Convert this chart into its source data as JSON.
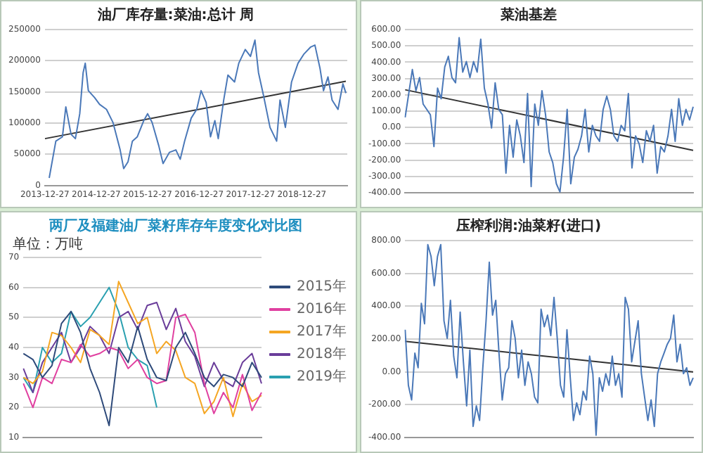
{
  "chart_data": [
    {
      "type": "line",
      "title": "油厂库存量:菜油:总计 周",
      "grid": "y",
      "marker": "none",
      "legend": false,
      "x": [
        "2014-01-27",
        "2014-03-15",
        "2014-05-01",
        "2014-05-25",
        "2014-07-01",
        "2014-08-01",
        "2014-09-01",
        "2014-09-25",
        "2014-10-10",
        "2014-11-01",
        "2014-12-15",
        "2015-01-20",
        "2015-03-10",
        "2015-04-25",
        "2015-06-15",
        "2015-07-10",
        "2015-08-10",
        "2015-09-10",
        "2015-10-15",
        "2015-11-30",
        "2015-12-27",
        "2016-01-28",
        "2016-03-15",
        "2016-04-15",
        "2016-05-30",
        "2016-07-15",
        "2016-08-15",
        "2016-09-15",
        "2016-11-01",
        "2016-12-10",
        "2017-01-10",
        "2017-02-15",
        "2017-03-18",
        "2017-04-18",
        "2017-05-12",
        "2017-06-20",
        "2017-07-20",
        "2017-09-05",
        "2017-10-05",
        "2017-11-20",
        "2017-12-27",
        "2018-01-28",
        "2018-02-22",
        "2018-03-30",
        "2018-05-15",
        "2018-07-01",
        "2018-07-25",
        "2018-09-01",
        "2018-10-15",
        "2018-11-30",
        "2019-01-12",
        "2019-02-28",
        "2019-03-30",
        "2019-05-05",
        "2019-05-30",
        "2019-07-01",
        "2019-07-30",
        "2019-09-10",
        "2019-10-15",
        "2019-11-05"
      ],
      "xlim": [
        "2013-12-27",
        "2019-11-15"
      ],
      "xticks": [
        "2013-12-27",
        "2014-12-27",
        "2015-12-27",
        "2016-12-27",
        "2017-12-27",
        "2018-12-27"
      ],
      "ylim": [
        0,
        250000
      ],
      "yticks": [
        0,
        50000,
        100000,
        150000,
        200000,
        250000
      ],
      "series": [
        {
          "color": "#4a78b8",
          "values": [
            12000,
            71000,
            78000,
            126000,
            82000,
            75000,
            115000,
            181000,
            196000,
            152000,
            141000,
            130000,
            122000,
            101000,
            57000,
            27000,
            38000,
            71000,
            78000,
            104000,
            115000,
            101000,
            64000,
            35000,
            53000,
            57000,
            42000,
            71000,
            108000,
            122000,
            152000,
            133000,
            78000,
            104000,
            75000,
            137000,
            177000,
            166000,
            196000,
            218000,
            207000,
            233000,
            181000,
            144000,
            93000,
            71000,
            137000,
            93000,
            166000,
            196000,
            211000,
            222000,
            225000,
            188000,
            152000,
            174000,
            137000,
            122000,
            163000,
            148000
          ]
        },
        {
          "type": "line",
          "color": "#333333",
          "x": [
            "2013-12-27",
            "2019-11-05"
          ],
          "values": [
            75000,
            167000
          ]
        }
      ]
    },
    {
      "type": "line",
      "title": "菜油基差",
      "grid": "y",
      "marker": "none",
      "legend": false,
      "tick_labels": "y",
      "categories": [
        null,
        null,
        null,
        null,
        null,
        null,
        null,
        null,
        null,
        null,
        null,
        null,
        null,
        null,
        null,
        null,
        null,
        null,
        null,
        null,
        null,
        null,
        null,
        null,
        null,
        null,
        null,
        null,
        null,
        null,
        null,
        null,
        null,
        null,
        null,
        null,
        null,
        null,
        null,
        null,
        null,
        null,
        null,
        null,
        null,
        null,
        null,
        null,
        null,
        null,
        null,
        null,
        null,
        null,
        null,
        null,
        null,
        null,
        null,
        null,
        null,
        null,
        null,
        null,
        null,
        null,
        null,
        null,
        null,
        null,
        null,
        null,
        null,
        null,
        null,
        null,
        null,
        null,
        null,
        null,
        null
      ],
      "ylim": [
        -400,
        600
      ],
      "yticks": [
        {
          "value": -400,
          "label": "-400.00"
        },
        {
          "value": -300,
          "label": "-300.00"
        },
        {
          "value": -200,
          "label": "-200.00"
        },
        {
          "value": -100,
          "label": "-100.00"
        },
        {
          "value": 0,
          "label": "0.00"
        },
        {
          "value": 100,
          "label": "100.00"
        },
        {
          "value": 200,
          "label": "200.00"
        },
        {
          "value": 300,
          "label": "300.00"
        },
        {
          "value": 400,
          "label": "400.00"
        },
        {
          "value": 500,
          "label": "500.00"
        },
        {
          "value": 600,
          "label": "600.00"
        }
      ],
      "series": [
        {
          "color": "#4a78b8",
          "values": [
            62,
            208,
            355,
            225,
            306,
            143,
            111,
            78,
            -117,
            241,
            176,
            371,
            436,
            306,
            274,
            550,
            339,
            404,
            306,
            404,
            339,
            541,
            241,
            143,
            -3,
            274,
            111,
            78,
            -280,
            13,
            -182,
            46,
            -52,
            -215,
            208,
            -362,
            143,
            13,
            225,
            78,
            -150,
            -215,
            -345,
            -395,
            -182,
            111,
            -345,
            -182,
            -134,
            -52,
            111,
            -150,
            13,
            -52,
            -85,
            111,
            192,
            111,
            -52,
            -85,
            13,
            -20,
            208,
            -248,
            -52,
            -101,
            -215,
            -20,
            -85,
            13,
            -280,
            -117,
            -150,
            -52,
            111,
            -85,
            176,
            13,
            111,
            46,
            127
          ]
        },
        {
          "type": "line",
          "color": "#333333",
          "values": [
            231,
            null,
            null,
            null,
            null,
            null,
            null,
            null,
            null,
            null,
            null,
            null,
            null,
            null,
            null,
            null,
            null,
            null,
            null,
            null,
            null,
            null,
            null,
            null,
            null,
            null,
            null,
            null,
            null,
            null,
            null,
            null,
            null,
            null,
            null,
            null,
            null,
            null,
            null,
            null,
            null,
            null,
            null,
            null,
            null,
            null,
            null,
            null,
            null,
            null,
            null,
            null,
            null,
            null,
            null,
            null,
            null,
            null,
            null,
            null,
            null,
            null,
            null,
            null,
            null,
            null,
            null,
            null,
            null,
            null,
            null,
            null,
            null,
            null,
            null,
            null,
            null,
            null,
            null,
            null,
            -140
          ]
        }
      ]
    },
    {
      "type": "line",
      "title": "两厂及福建油厂菜籽库存年度变化对比图",
      "ylabel": "单位：万吨",
      "grid": "y",
      "marker": "none",
      "legend": "right",
      "tick_labels": "y",
      "categories": [
        null,
        null,
        null,
        null,
        null,
        null,
        null,
        null,
        null,
        null,
        null,
        null,
        null,
        null,
        null,
        null,
        null,
        null,
        null,
        null,
        null,
        null,
        null,
        null,
        null,
        null
      ],
      "ylim": [
        10,
        70
      ],
      "yticks": [
        10,
        20,
        30,
        40,
        50,
        60,
        70
      ],
      "series": [
        {
          "name": "2015年",
          "color": "#2e4a7a",
          "values": [
            38,
            36,
            30,
            34,
            48,
            52,
            45,
            33,
            25,
            14,
            40,
            35,
            47,
            36,
            30,
            29,
            40,
            45,
            38,
            30,
            27,
            31,
            30,
            27,
            35,
            30
          ]
        },
        {
          "name": "2016年",
          "color": "#e040a0",
          "values": [
            28,
            20,
            30,
            28,
            36,
            35,
            41,
            37,
            38,
            40,
            39,
            33,
            36,
            30,
            28,
            29,
            50,
            51,
            45,
            28,
            18,
            25,
            20,
            31,
            19,
            25
          ]
        },
        {
          "name": "2017年",
          "color": "#f5a623",
          "values": [
            30,
            28,
            32,
            45,
            44,
            40,
            35,
            46,
            44,
            41,
            62,
            55,
            48,
            50,
            38,
            42,
            39,
            30,
            28,
            18,
            22,
            30,
            17,
            28,
            22,
            24
          ]
        },
        {
          "name": "2018年",
          "color": "#6a3d9a",
          "values": [
            33,
            25,
            35,
            40,
            45,
            35,
            40,
            47,
            44,
            38,
            50,
            52,
            46,
            54,
            55,
            46,
            53,
            42,
            37,
            27,
            35,
            29,
            27,
            35,
            38,
            28
          ]
        },
        {
          "name": "2019年",
          "color": "#2aa0b0",
          "values": [
            30,
            25,
            40,
            35,
            38,
            52,
            47,
            50,
            55,
            60,
            52,
            40,
            36,
            34,
            20,
            null,
            null,
            null,
            null,
            null,
            null,
            null,
            null,
            null,
            null,
            null
          ]
        }
      ]
    },
    {
      "type": "line",
      "title": "压榨利润:油菜籽(进口)",
      "grid": "y",
      "marker": "none",
      "legend": false,
      "tick_labels": "y",
      "categories": [
        null,
        null,
        null,
        null,
        null,
        null,
        null,
        null,
        null,
        null,
        null,
        null,
        null,
        null,
        null,
        null,
        null,
        null,
        null,
        null,
        null,
        null,
        null,
        null,
        null,
        null,
        null,
        null,
        null,
        null,
        null,
        null,
        null,
        null,
        null,
        null,
        null,
        null,
        null,
        null,
        null,
        null,
        null,
        null,
        null,
        null,
        null,
        null,
        null,
        null,
        null,
        null,
        null,
        null,
        null,
        null,
        null,
        null,
        null,
        null,
        null,
        null,
        null,
        null,
        null,
        null,
        null,
        null,
        null,
        null,
        null,
        null,
        null,
        null,
        null,
        null,
        null,
        null,
        null,
        null,
        null,
        null,
        null,
        null,
        null,
        null,
        null,
        null,
        null,
        null
      ],
      "ylim": [
        -400,
        800
      ],
      "yticks": [
        {
          "value": -400,
          "label": "-400.00"
        },
        {
          "value": -200,
          "label": "-200.00"
        },
        {
          "value": 0,
          "label": "0.00"
        },
        {
          "value": 200,
          "label": "200.00"
        },
        {
          "value": 400,
          "label": "400.00"
        },
        {
          "value": 600,
          "label": "600.00"
        },
        {
          "value": 800,
          "label": "800.00"
        }
      ],
      "series": [
        {
          "color": "#4a78b8",
          "values": [
            257,
            -82,
            -171,
            114,
            25,
            418,
            293,
            775,
            704,
            525,
            704,
            775,
            311,
            204,
            436,
            96,
            -36,
            364,
            61,
            -207,
            132,
            -332,
            -207,
            -296,
            25,
            311,
            668,
            346,
            436,
            114,
            -171,
            -11,
            25,
            311,
            204,
            -36,
            132,
            -82,
            61,
            -11,
            -154,
            -189,
            382,
            275,
            346,
            221,
            454,
            204,
            -82,
            -154,
            257,
            -29,
            -296,
            -189,
            -261,
            -118,
            -171,
            96,
            -11,
            -386,
            -36,
            -118,
            -11,
            -82,
            96,
            -82,
            -11,
            -154,
            454,
            382,
            61,
            186,
            311,
            -11,
            -154,
            -296,
            -171,
            -332,
            -11,
            61,
            114,
            168,
            204,
            346,
            61,
            168,
            -11,
            25,
            -82,
            -36
          ]
        },
        {
          "type": "line",
          "color": "#333333",
          "values": [
            186,
            null,
            null,
            null,
            null,
            null,
            null,
            null,
            null,
            null,
            null,
            null,
            null,
            null,
            null,
            null,
            null,
            null,
            null,
            null,
            null,
            null,
            null,
            null,
            null,
            null,
            null,
            null,
            null,
            null,
            null,
            null,
            null,
            null,
            null,
            null,
            null,
            null,
            null,
            null,
            null,
            null,
            null,
            null,
            null,
            null,
            null,
            null,
            null,
            null,
            null,
            null,
            null,
            null,
            null,
            null,
            null,
            null,
            null,
            null,
            null,
            null,
            null,
            null,
            null,
            null,
            null,
            null,
            null,
            null,
            null,
            null,
            null,
            null,
            null,
            null,
            null,
            null,
            null,
            null,
            null,
            null,
            null,
            null,
            null,
            null,
            null,
            null,
            null,
            0
          ]
        }
      ]
    }
  ]
}
